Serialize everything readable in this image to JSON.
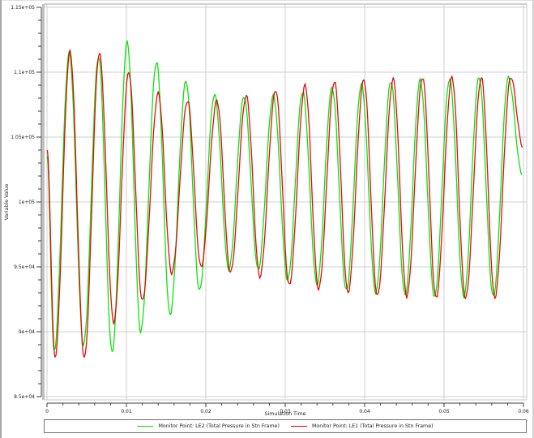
{
  "chart_data": {
    "type": "line",
    "title": "",
    "xlabel": "Simulation Time",
    "ylabel": "Variable Value",
    "xlim": [
      0,
      0.06
    ],
    "ylim": [
      85000,
      115000
    ],
    "grid": true,
    "legend_position": "bottom",
    "x_ticks": [
      "0",
      "0.01",
      "0.02",
      "0.03",
      "0.04",
      "0.05",
      "0.06"
    ],
    "x_tick_values": [
      0,
      0.01,
      0.02,
      0.03,
      0.04,
      0.05,
      0.06
    ],
    "y_ticks": [
      "8.5e+04",
      "9e+04",
      "9.5e+04",
      "1e+05",
      "1.05e+05",
      "1.1e+05",
      "1.15e+05"
    ],
    "y_tick_values": [
      85000,
      90000,
      95000,
      100000,
      105000,
      110000,
      115000
    ],
    "series": [
      {
        "name": "Monitor Point: LE2 (Total Pressure in Stn Frame)",
        "color": "#00e000",
        "start": {
          "x": 0.0,
          "y": 103500
        },
        "extrema": [
          {
            "x": 0.0009,
            "y": 88500
          },
          {
            "x": 0.0028,
            "y": 111500
          },
          {
            "x": 0.0046,
            "y": 89000
          },
          {
            "x": 0.0065,
            "y": 111200
          },
          {
            "x": 0.0082,
            "y": 88400
          },
          {
            "x": 0.0101,
            "y": 112300
          },
          {
            "x": 0.0118,
            "y": 90000
          },
          {
            "x": 0.0138,
            "y": 110800
          },
          {
            "x": 0.0155,
            "y": 91300
          },
          {
            "x": 0.0175,
            "y": 109300
          },
          {
            "x": 0.0192,
            "y": 93200
          },
          {
            "x": 0.0211,
            "y": 108300
          },
          {
            "x": 0.0229,
            "y": 94800
          },
          {
            "x": 0.0248,
            "y": 108100
          },
          {
            "x": 0.0266,
            "y": 94800
          },
          {
            "x": 0.0285,
            "y": 108200
          },
          {
            "x": 0.0303,
            "y": 94000
          },
          {
            "x": 0.0322,
            "y": 108500
          },
          {
            "x": 0.034,
            "y": 93600
          },
          {
            "x": 0.0359,
            "y": 108800
          },
          {
            "x": 0.0377,
            "y": 93200
          },
          {
            "x": 0.0396,
            "y": 109100
          },
          {
            "x": 0.0414,
            "y": 93000
          },
          {
            "x": 0.0433,
            "y": 109300
          },
          {
            "x": 0.0451,
            "y": 92800
          },
          {
            "x": 0.047,
            "y": 109400
          },
          {
            "x": 0.0488,
            "y": 92700
          },
          {
            "x": 0.0507,
            "y": 109500
          },
          {
            "x": 0.0525,
            "y": 92700
          },
          {
            "x": 0.0544,
            "y": 109600
          },
          {
            "x": 0.0562,
            "y": 92700
          },
          {
            "x": 0.0581,
            "y": 109600
          }
        ],
        "end": {
          "x": 0.0598,
          "y": 102200
        }
      },
      {
        "name": "Monitor Point: LE1 (Total Pressure in Stn Frame)",
        "color": "#e00000",
        "start": {
          "x": 0.0,
          "y": 104000
        },
        "extrema": [
          {
            "x": 0.001,
            "y": 88000
          },
          {
            "x": 0.0029,
            "y": 111600
          },
          {
            "x": 0.0047,
            "y": 88000
          },
          {
            "x": 0.0066,
            "y": 111500
          },
          {
            "x": 0.0084,
            "y": 90700
          },
          {
            "x": 0.0103,
            "y": 110000
          },
          {
            "x": 0.012,
            "y": 92400
          },
          {
            "x": 0.014,
            "y": 108400
          },
          {
            "x": 0.0157,
            "y": 94500
          },
          {
            "x": 0.0177,
            "y": 107800
          },
          {
            "x": 0.0194,
            "y": 95000
          },
          {
            "x": 0.0214,
            "y": 107800
          },
          {
            "x": 0.0231,
            "y": 94600
          },
          {
            "x": 0.0251,
            "y": 108200
          },
          {
            "x": 0.0268,
            "y": 94200
          },
          {
            "x": 0.0288,
            "y": 108600
          },
          {
            "x": 0.0305,
            "y": 93600
          },
          {
            "x": 0.0325,
            "y": 109000
          },
          {
            "x": 0.0342,
            "y": 93300
          },
          {
            "x": 0.0362,
            "y": 109300
          },
          {
            "x": 0.0379,
            "y": 93000
          },
          {
            "x": 0.0399,
            "y": 109400
          },
          {
            "x": 0.0416,
            "y": 92800
          },
          {
            "x": 0.0436,
            "y": 109500
          },
          {
            "x": 0.0453,
            "y": 92700
          },
          {
            "x": 0.0473,
            "y": 109600
          },
          {
            "x": 0.049,
            "y": 92600
          },
          {
            "x": 0.051,
            "y": 109600
          },
          {
            "x": 0.0527,
            "y": 92600
          },
          {
            "x": 0.0547,
            "y": 109600
          },
          {
            "x": 0.0564,
            "y": 92600
          },
          {
            "x": 0.0584,
            "y": 109600
          }
        ],
        "end": {
          "x": 0.0599,
          "y": 104300
        }
      }
    ]
  },
  "legend": {
    "items": [
      {
        "label": "Monitor Point: LE2 (Total Pressure in Stn Frame)",
        "color": "#00e000"
      },
      {
        "label": "Monitor Point: LE1 (Total Pressure in Stn Frame)",
        "color": "#e00000"
      }
    ]
  },
  "axes": {
    "x_title": "Simulation Time",
    "y_title": "Variable Value"
  }
}
